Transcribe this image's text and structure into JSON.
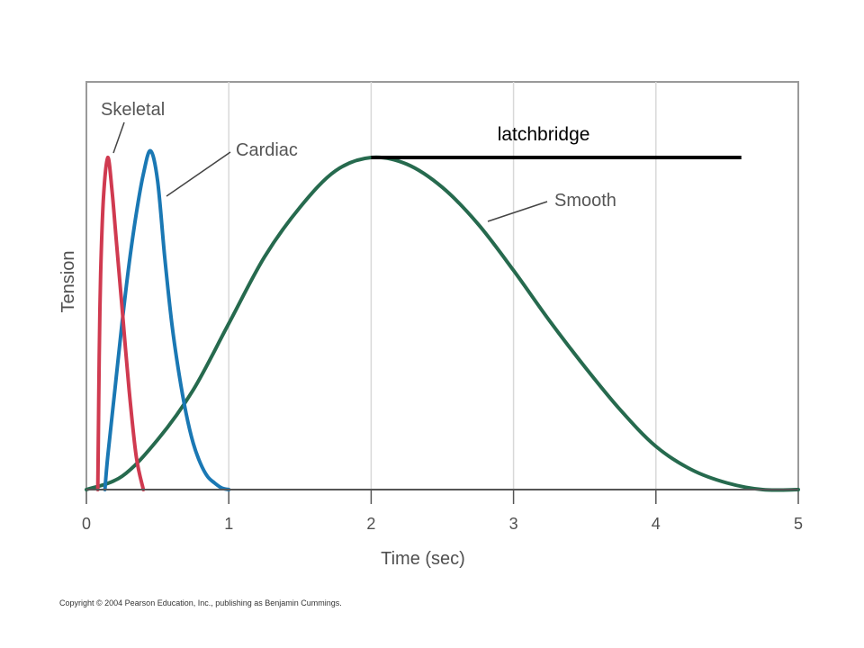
{
  "chart_data": {
    "type": "line",
    "xlabel": "Time (sec)",
    "ylabel": "Tension",
    "xlim": [
      0,
      5
    ],
    "ylim": [
      0,
      1
    ],
    "x_ticks": [
      0,
      1,
      2,
      3,
      4,
      5
    ],
    "tick_labels": [
      "0",
      "1",
      "2",
      "3",
      "4",
      "5"
    ],
    "grid": "vertical",
    "series": [
      {
        "name": "Skeletal",
        "color": "#d03a50",
        "x": [
          0.08,
          0.085,
          0.09,
          0.1,
          0.12,
          0.15,
          0.18,
          0.21,
          0.25,
          0.3,
          0.35,
          0.4
        ],
        "y": [
          0.0,
          0.2,
          0.4,
          0.65,
          0.88,
          1.0,
          0.9,
          0.75,
          0.55,
          0.3,
          0.1,
          0.0
        ]
      },
      {
        "name": "Cardiac",
        "color": "#1a78b4",
        "x": [
          0.13,
          0.15,
          0.2,
          0.25,
          0.3,
          0.35,
          0.4,
          0.45,
          0.5,
          0.55,
          0.6,
          0.65,
          0.7,
          0.75,
          0.8,
          0.85,
          0.9,
          0.95,
          1.0
        ],
        "y": [
          0.0,
          0.1,
          0.3,
          0.5,
          0.68,
          0.83,
          0.95,
          1.02,
          0.93,
          0.7,
          0.5,
          0.35,
          0.23,
          0.14,
          0.08,
          0.04,
          0.02,
          0.005,
          0.0
        ]
      },
      {
        "name": "Smooth",
        "color": "#266a4e",
        "x": [
          0.0,
          0.25,
          0.5,
          0.75,
          1.0,
          1.25,
          1.5,
          1.75,
          2.0,
          2.25,
          2.5,
          2.75,
          3.0,
          3.25,
          3.5,
          3.75,
          4.0,
          4.25,
          4.5,
          4.75,
          5.0
        ],
        "y": [
          0.0,
          0.04,
          0.15,
          0.3,
          0.5,
          0.7,
          0.85,
          0.96,
          1.0,
          0.98,
          0.91,
          0.8,
          0.66,
          0.51,
          0.37,
          0.24,
          0.13,
          0.06,
          0.02,
          0.0,
          0.0
        ]
      }
    ],
    "annotations": [
      {
        "text": "latchbridge",
        "x_start": 2.0,
        "x_end": 4.6,
        "y": 1.0
      }
    ]
  },
  "copyright": "Copyright © 2004 Pearson Education, Inc., publishing as Benjamin Cummings."
}
